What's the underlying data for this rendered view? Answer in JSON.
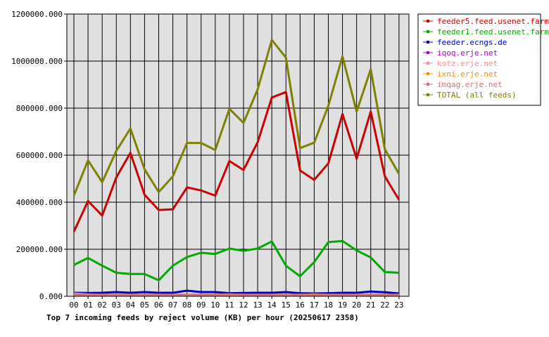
{
  "chart_data": {
    "type": "line",
    "title": "Top 7 incoming feeds by reject volume (KB) per hour (20250617 2358)",
    "xlabel": "",
    "ylabel": "",
    "categories": [
      "00",
      "01",
      "02",
      "03",
      "04",
      "05",
      "06",
      "07",
      "08",
      "09",
      "10",
      "11",
      "12",
      "13",
      "14",
      "15",
      "16",
      "17",
      "18",
      "19",
      "20",
      "21",
      "22",
      "23"
    ],
    "ylim": [
      0,
      1200000
    ],
    "yticks": [
      "0.000",
      "200000.000",
      "400000.000",
      "600000.000",
      "800000.000",
      "1000000.000",
      "1200000.000"
    ],
    "grid": true,
    "legend_position": "top-right",
    "series": [
      {
        "name": "feeder5.feed.usenet.farm",
        "color": "#cc0000",
        "values": [
          275000,
          405000,
          343000,
          505000,
          610000,
          432000,
          367000,
          370000,
          463000,
          450000,
          428000,
          575000,
          537000,
          655000,
          845000,
          868000,
          535000,
          495000,
          565000,
          775000,
          585000,
          785000,
          510000,
          410000
        ]
      },
      {
        "name": "feeder1.feed.usenet.farm",
        "color": "#00aa00",
        "values": [
          133000,
          163000,
          130000,
          100000,
          95000,
          95000,
          68000,
          130000,
          167000,
          185000,
          180000,
          203000,
          193000,
          203000,
          233000,
          130000,
          85000,
          145000,
          230000,
          235000,
          195000,
          165000,
          103000,
          100000
        ]
      },
      {
        "name": "feeder.ecngs.de",
        "color": "#0000cc",
        "values": [
          15000,
          14000,
          15000,
          18000,
          15000,
          18000,
          15000,
          15000,
          24000,
          18000,
          18000,
          13000,
          14000,
          15000,
          15000,
          18000,
          13000,
          12000,
          13000,
          15000,
          15000,
          20000,
          17000,
          12000
        ]
      },
      {
        "name": "iqoq.erje.net",
        "color": "#aa00cc",
        "values": [
          3000,
          3000,
          3000,
          3000,
          3000,
          3000,
          3000,
          3000,
          3000,
          3000,
          3000,
          3000,
          3000,
          3000,
          3000,
          3000,
          3000,
          3000,
          3000,
          3000,
          3000,
          3000,
          3000,
          3000
        ]
      },
      {
        "name": "kotz.erje.net",
        "color": "#ff8888",
        "values": [
          12000,
          8000,
          6000,
          6000,
          6000,
          6000,
          6000,
          6000,
          6000,
          6000,
          6000,
          8000,
          6000,
          6000,
          6000,
          6000,
          6000,
          8000,
          6000,
          6000,
          6000,
          6000,
          6000,
          6000
        ]
      },
      {
        "name": "ixni.erje.net",
        "color": "#ff8800",
        "values": [
          4000,
          4000,
          4000,
          4000,
          4000,
          4000,
          4000,
          4000,
          4000,
          4000,
          4000,
          4000,
          4000,
          4000,
          4000,
          4000,
          4000,
          4000,
          4000,
          4000,
          4000,
          4000,
          4000,
          4000
        ]
      },
      {
        "name": "imqag.erje.net",
        "color": "#cc7777",
        "values": [
          8000,
          7000,
          7000,
          7000,
          7000,
          7000,
          7000,
          7000,
          7000,
          7000,
          7000,
          8000,
          7000,
          7000,
          7000,
          7000,
          7000,
          7000,
          7000,
          7000,
          7000,
          7000,
          7000,
          7000
        ]
      },
      {
        "name": "TOTAL (all feeds)",
        "color": "#808000",
        "values": [
          428000,
          578000,
          485000,
          618000,
          713000,
          540000,
          443000,
          510000,
          652000,
          652000,
          622000,
          797000,
          737000,
          880000,
          1090000,
          1015000,
          630000,
          653000,
          810000,
          1020000,
          785000,
          965000,
          625000,
          520000
        ]
      }
    ]
  }
}
